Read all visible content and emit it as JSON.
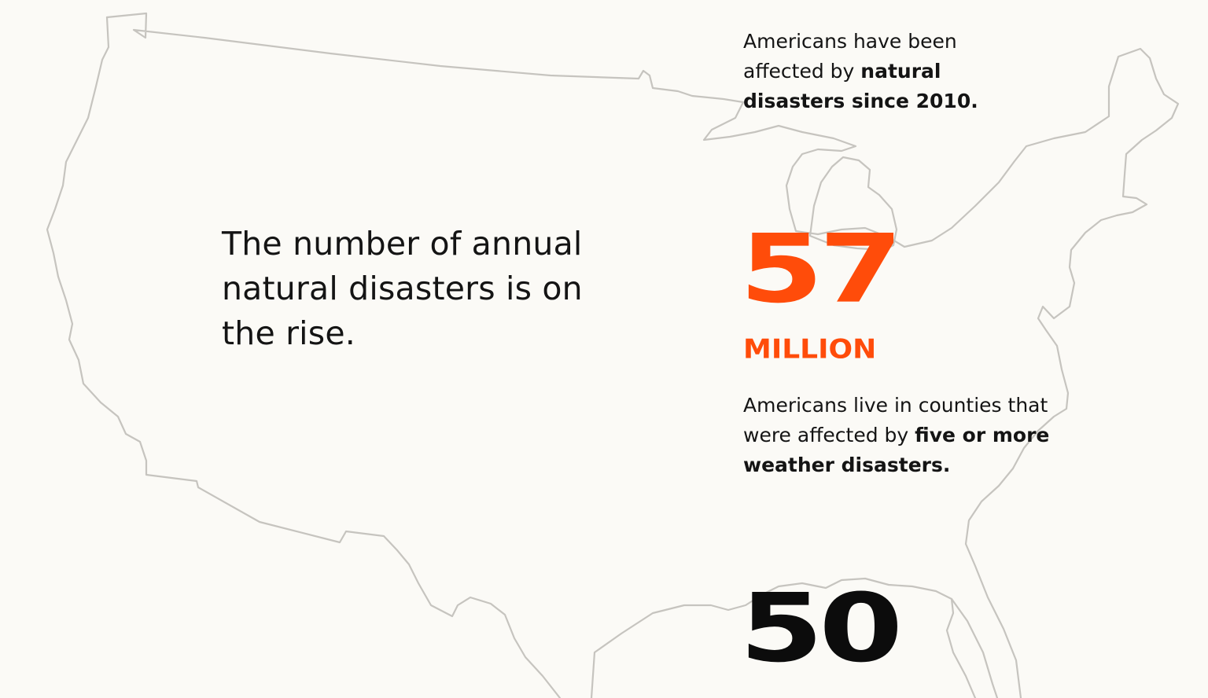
{
  "headline": "The number of annual natural disasters is on the rise.",
  "stat_top_caption": {
    "prefix": "Americans have been affected by ",
    "emphasis": "natural disasters since 2010."
  },
  "stat_57": {
    "number": "57",
    "unit": "MILLION",
    "caption_prefix": "Americans live in counties that were affected by ",
    "caption_emphasis": "five or more weather disasters."
  },
  "stat_50": {
    "number": "50"
  },
  "colors": {
    "background": "#fbfaf6",
    "accent": "#ff4c0a",
    "text": "#141414",
    "map_outline": "#c6c4bf"
  }
}
